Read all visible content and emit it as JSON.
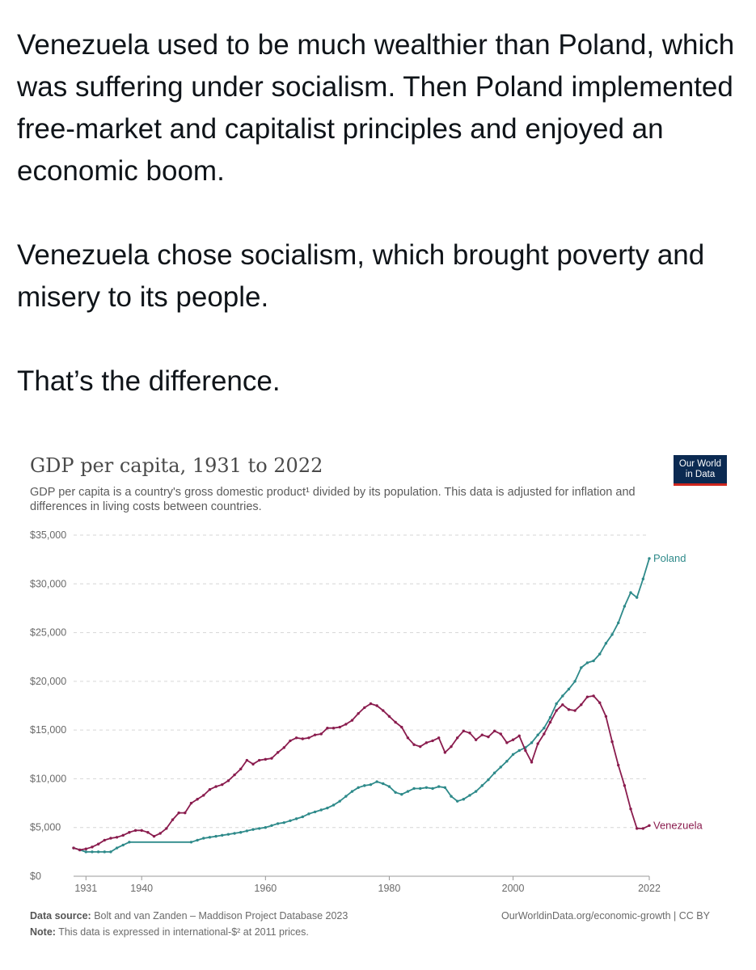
{
  "post": {
    "paragraphs": [
      "Venezuela used to be much wealthier than Poland, which was suffering under socialism. Then Poland implemented free-market and capitalist principles and enjoyed an economic boom.",
      "Venezuela chose socialism, which brought poverty and misery to its people.",
      "That’s the difference."
    ]
  },
  "logo": {
    "line1": "Our World",
    "line2": "in Data"
  },
  "footer": {
    "source_label": "Data source:",
    "source_text": "Bolt and van Zanden – Maddison Project Database 2023",
    "note_label": "Note:",
    "note_text": "This data is expressed in international-$² at 2011 prices.",
    "right_text": "OurWorldinData.org/economic-growth | CC BY"
  },
  "colors": {
    "poland": "#2e8a8a",
    "venezuela": "#8a1c4e",
    "grid": "#d6d6d6",
    "axis_text": "#6a6a6a"
  },
  "chart_data": {
    "type": "line",
    "title": "GDP per capita, 1931 to 2022",
    "subtitle": "GDP per capita is a country's gross domestic product¹ divided by its population. This data is adjusted for inflation and differences in living costs between countries.",
    "xlabel": "",
    "ylabel": "",
    "xlim": [
      1929,
      2022
    ],
    "ylim": [
      0,
      35000
    ],
    "x_ticks": [
      1931,
      1940,
      1960,
      1980,
      2000,
      2022
    ],
    "y_ticks": [
      0,
      5000,
      10000,
      15000,
      20000,
      25000,
      30000,
      35000
    ],
    "y_tick_labels": [
      "$0",
      "$5,000",
      "$10,000",
      "$15,000",
      "$20,000",
      "$25,000",
      "$30,000",
      "$35,000"
    ],
    "grid": true,
    "legend": "line-end labels",
    "series": [
      {
        "name": "Poland",
        "points": [
          [
            1929,
            2900
          ],
          [
            1930,
            2700
          ],
          [
            1931,
            2500
          ],
          [
            1932,
            2500
          ],
          [
            1933,
            2500
          ],
          [
            1934,
            2500
          ],
          [
            1935,
            2500
          ],
          [
            1936,
            2900
          ],
          [
            1937,
            3200
          ],
          [
            1938,
            3500
          ],
          [
            1948,
            3500
          ],
          [
            1949,
            3700
          ],
          [
            1950,
            3900
          ],
          [
            1951,
            4000
          ],
          [
            1952,
            4100
          ],
          [
            1953,
            4200
          ],
          [
            1954,
            4300
          ],
          [
            1955,
            4400
          ],
          [
            1956,
            4500
          ],
          [
            1957,
            4650
          ],
          [
            1958,
            4800
          ],
          [
            1959,
            4900
          ],
          [
            1960,
            5000
          ],
          [
            1961,
            5200
          ],
          [
            1962,
            5400
          ],
          [
            1963,
            5500
          ],
          [
            1964,
            5700
          ],
          [
            1965,
            5900
          ],
          [
            1966,
            6100
          ],
          [
            1967,
            6400
          ],
          [
            1968,
            6600
          ],
          [
            1969,
            6800
          ],
          [
            1970,
            7000
          ],
          [
            1971,
            7300
          ],
          [
            1972,
            7700
          ],
          [
            1973,
            8200
          ],
          [
            1974,
            8700
          ],
          [
            1975,
            9100
          ],
          [
            1976,
            9300
          ],
          [
            1977,
            9400
          ],
          [
            1978,
            9700
          ],
          [
            1979,
            9500
          ],
          [
            1980,
            9200
          ],
          [
            1981,
            8600
          ],
          [
            1982,
            8400
          ],
          [
            1983,
            8700
          ],
          [
            1984,
            9000
          ],
          [
            1985,
            9000
          ],
          [
            1986,
            9100
          ],
          [
            1987,
            9000
          ],
          [
            1988,
            9200
          ],
          [
            1989,
            9100
          ],
          [
            1990,
            8200
          ],
          [
            1991,
            7700
          ],
          [
            1992,
            7900
          ],
          [
            1993,
            8300
          ],
          [
            1994,
            8700
          ],
          [
            1995,
            9300
          ],
          [
            1996,
            9900
          ],
          [
            1997,
            10600
          ],
          [
            1998,
            11200
          ],
          [
            1999,
            11800
          ],
          [
            2000,
            12500
          ],
          [
            2001,
            12900
          ],
          [
            2002,
            13200
          ],
          [
            2003,
            13700
          ],
          [
            2004,
            14500
          ],
          [
            2005,
            15200
          ],
          [
            2006,
            16300
          ],
          [
            2007,
            17700
          ],
          [
            2008,
            18500
          ],
          [
            2009,
            19200
          ],
          [
            2010,
            20000
          ],
          [
            2011,
            21400
          ],
          [
            2012,
            21900
          ],
          [
            2013,
            22100
          ],
          [
            2014,
            22800
          ],
          [
            2015,
            23900
          ],
          [
            2016,
            24800
          ],
          [
            2017,
            26000
          ],
          [
            2018,
            27700
          ],
          [
            2019,
            29100
          ],
          [
            2020,
            28600
          ],
          [
            2021,
            30500
          ],
          [
            2022,
            32600
          ]
        ]
      },
      {
        "name": "Venezuela",
        "points": [
          [
            1929,
            2900
          ],
          [
            1930,
            2700
          ],
          [
            1931,
            2800
          ],
          [
            1932,
            3000
          ],
          [
            1933,
            3300
          ],
          [
            1934,
            3700
          ],
          [
            1935,
            3900
          ],
          [
            1936,
            4000
          ],
          [
            1937,
            4200
          ],
          [
            1938,
            4500
          ],
          [
            1939,
            4700
          ],
          [
            1940,
            4700
          ],
          [
            1941,
            4500
          ],
          [
            1942,
            4100
          ],
          [
            1943,
            4400
          ],
          [
            1944,
            4900
          ],
          [
            1945,
            5800
          ],
          [
            1946,
            6500
          ],
          [
            1947,
            6500
          ],
          [
            1948,
            7500
          ],
          [
            1949,
            7900
          ],
          [
            1950,
            8300
          ],
          [
            1951,
            8900
          ],
          [
            1952,
            9200
          ],
          [
            1953,
            9400
          ],
          [
            1954,
            9800
          ],
          [
            1955,
            10400
          ],
          [
            1956,
            11000
          ],
          [
            1957,
            11900
          ],
          [
            1958,
            11500
          ],
          [
            1959,
            11900
          ],
          [
            1960,
            12000
          ],
          [
            1961,
            12100
          ],
          [
            1962,
            12700
          ],
          [
            1963,
            13200
          ],
          [
            1964,
            13900
          ],
          [
            1965,
            14200
          ],
          [
            1966,
            14100
          ],
          [
            1967,
            14200
          ],
          [
            1968,
            14500
          ],
          [
            1969,
            14600
          ],
          [
            1970,
            15200
          ],
          [
            1971,
            15200
          ],
          [
            1972,
            15300
          ],
          [
            1973,
            15600
          ],
          [
            1974,
            16000
          ],
          [
            1975,
            16700
          ],
          [
            1976,
            17300
          ],
          [
            1977,
            17700
          ],
          [
            1978,
            17500
          ],
          [
            1979,
            17000
          ],
          [
            1980,
            16400
          ],
          [
            1981,
            15800
          ],
          [
            1982,
            15300
          ],
          [
            1983,
            14200
          ],
          [
            1984,
            13500
          ],
          [
            1985,
            13300
          ],
          [
            1986,
            13700
          ],
          [
            1987,
            13900
          ],
          [
            1988,
            14200
          ],
          [
            1989,
            12700
          ],
          [
            1990,
            13300
          ],
          [
            1991,
            14200
          ],
          [
            1992,
            14900
          ],
          [
            1993,
            14700
          ],
          [
            1994,
            14000
          ],
          [
            1995,
            14500
          ],
          [
            1996,
            14300
          ],
          [
            1997,
            14900
          ],
          [
            1998,
            14600
          ],
          [
            1999,
            13700
          ],
          [
            2000,
            14000
          ],
          [
            2001,
            14400
          ],
          [
            2002,
            12900
          ],
          [
            2003,
            11700
          ],
          [
            2004,
            13600
          ],
          [
            2005,
            14600
          ],
          [
            2006,
            15800
          ],
          [
            2007,
            17000
          ],
          [
            2008,
            17600
          ],
          [
            2009,
            17100
          ],
          [
            2010,
            17000
          ],
          [
            2011,
            17600
          ],
          [
            2012,
            18400
          ],
          [
            2013,
            18500
          ],
          [
            2014,
            17800
          ],
          [
            2015,
            16400
          ],
          [
            2016,
            13800
          ],
          [
            2017,
            11400
          ],
          [
            2018,
            9300
          ],
          [
            2019,
            6900
          ],
          [
            2020,
            4900
          ],
          [
            2021,
            4900
          ],
          [
            2022,
            5200
          ]
        ]
      }
    ]
  }
}
